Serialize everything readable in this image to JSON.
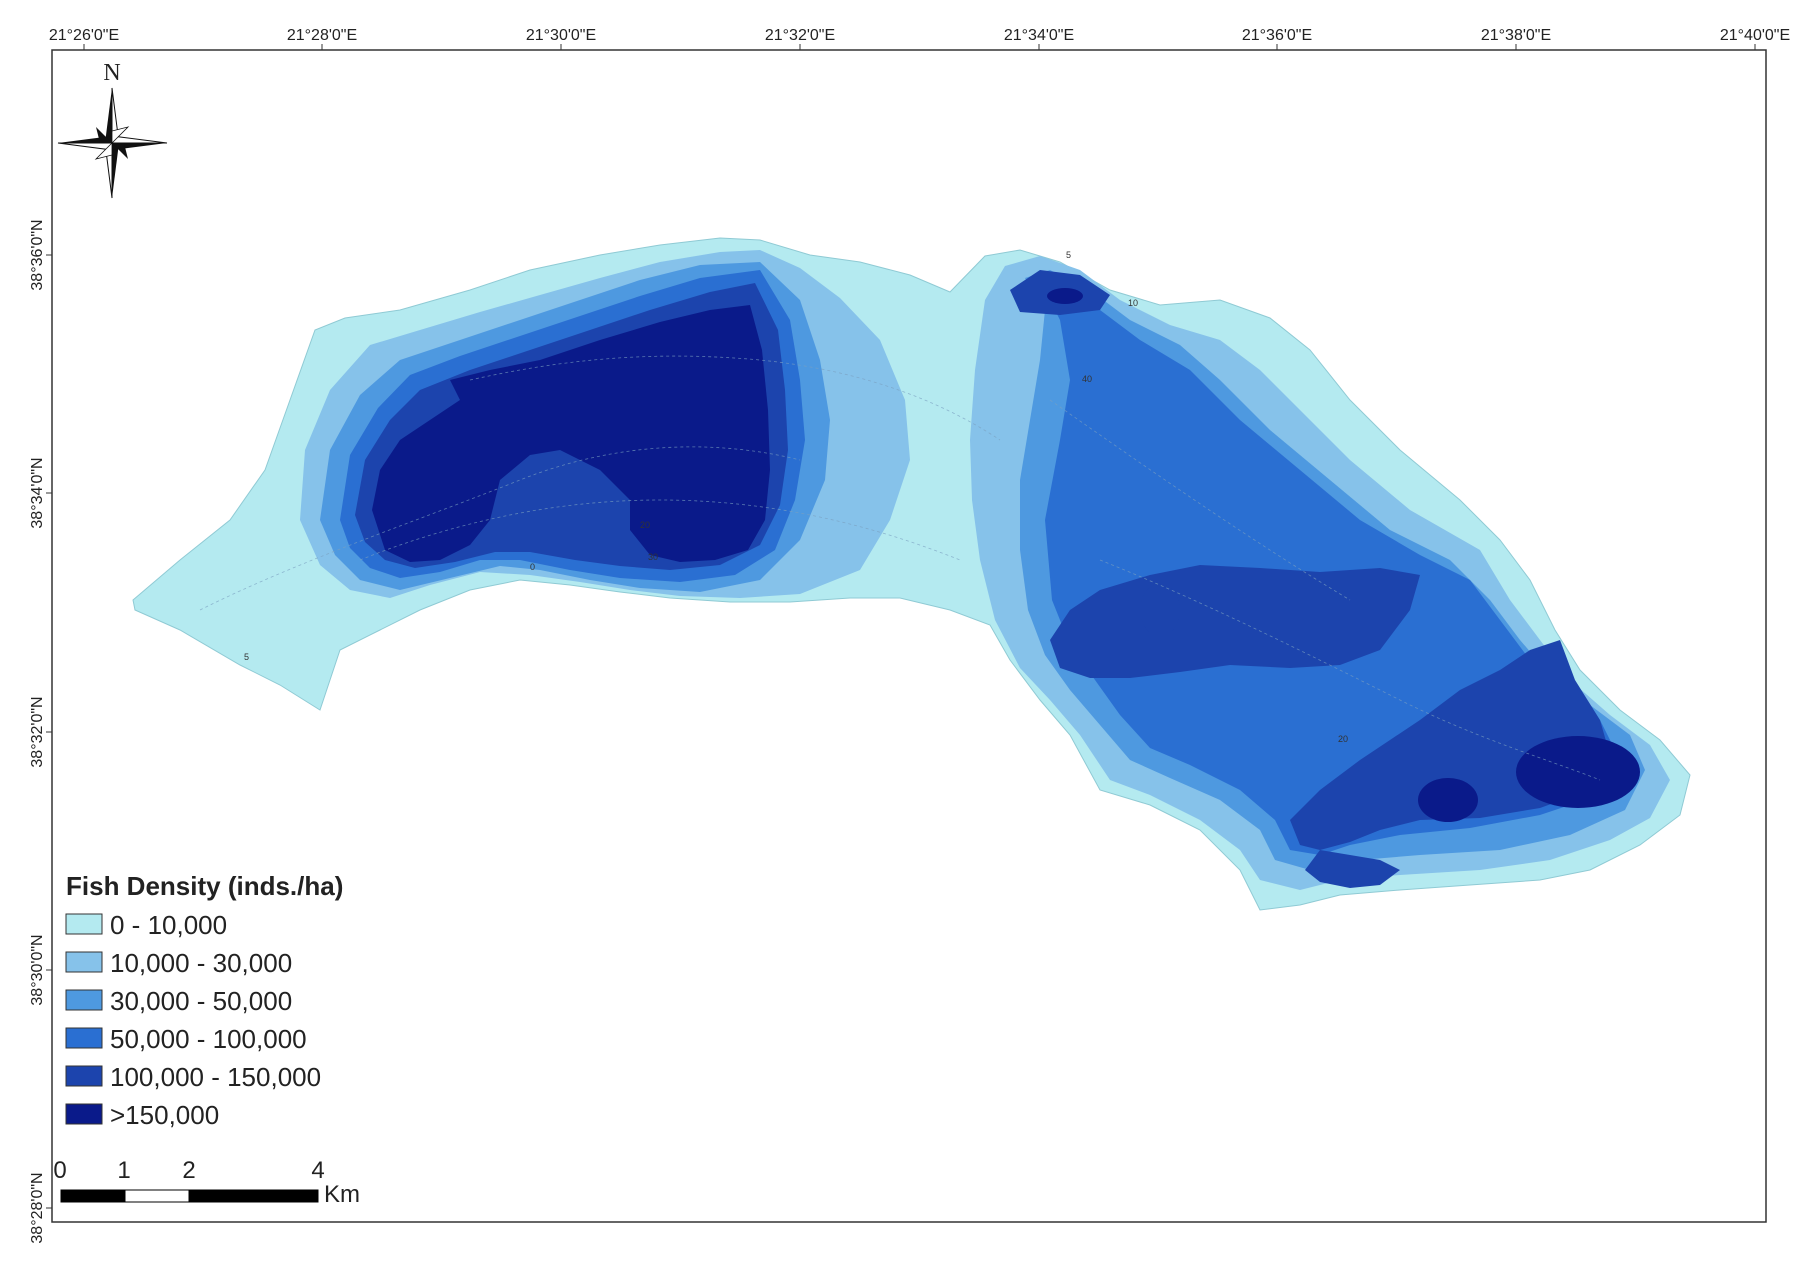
{
  "map": {
    "lon_ticks": [
      "21°26'0\"E",
      "21°28'0\"E",
      "21°30'0\"E",
      "21°32'0\"E",
      "21°34'0\"E",
      "21°36'0\"E",
      "21°38'0\"E",
      "21°40'0\"E"
    ],
    "lat_ticks": [
      "38°36'0\"N",
      "38°34'0\"N",
      "38°32'0\"N",
      "38°30'0\"N",
      "38°28'0\"N"
    ],
    "north_label": "N",
    "contour_labels": [
      "5",
      "10",
      "40",
      "20",
      "0",
      "30",
      "20",
      "5"
    ]
  },
  "legend": {
    "title": "Fish Density (inds./ha)",
    "items": [
      {
        "label": "0 - 10,000",
        "color": "#b4eaf0"
      },
      {
        "label": "10,000 - 30,000",
        "color": "#86c2ea"
      },
      {
        "label": "30,000 - 50,000",
        "color": "#4e99e0"
      },
      {
        "label": "50,000 - 100,000",
        "color": "#2a6fd2"
      },
      {
        "label": "100,000 - 150,000",
        "color": "#1c44ad"
      },
      {
        "label": ">150,000",
        "color": "#0a1a8a"
      }
    ]
  },
  "scale_bar": {
    "labels": [
      "0",
      "1",
      "2",
      "4"
    ],
    "unit": "Km"
  }
}
